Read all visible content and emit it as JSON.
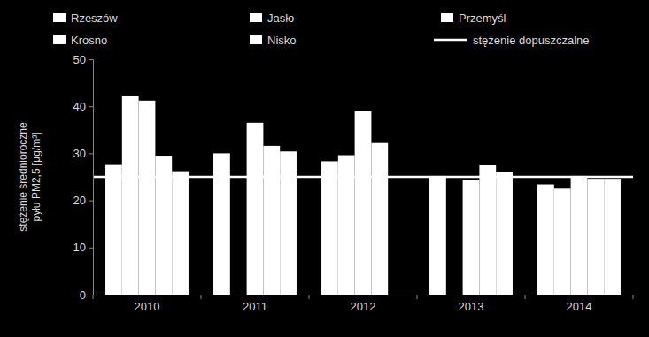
{
  "chart_data": {
    "type": "bar",
    "categories": [
      "2010",
      "2011",
      "2012",
      "2013",
      "2014"
    ],
    "series": [
      {
        "name": "Rzeszów",
        "color": "#ffffff",
        "values": [
          27.7,
          30.0,
          28.3,
          25.2,
          23.4
        ]
      },
      {
        "name": "Jasło",
        "color": "#ffffff",
        "values": [
          42.3,
          null,
          29.6,
          null,
          22.5
        ]
      },
      {
        "name": "Przemyśl",
        "color": "#ffffff",
        "values": [
          41.2,
          36.5,
          39.0,
          24.4,
          25.2
        ]
      },
      {
        "name": "Krosno",
        "color": "#ffffff",
        "values": [
          29.5,
          31.6,
          32.2,
          27.5,
          24.6
        ]
      },
      {
        "name": "Nisko",
        "color": "#ffffff",
        "values": [
          26.2,
          30.4,
          null,
          26.0,
          24.6
        ]
      }
    ],
    "reference_line": {
      "name": "stężenie dopuszczalne",
      "value": 25,
      "color": "#ffffff"
    },
    "ylabel": [
      "stężenie średnioroczne",
      "pyłu PM2,5 [µg/m³]"
    ],
    "ylim": [
      0,
      50
    ],
    "yticks": [
      0,
      10,
      20,
      30,
      40,
      50
    ],
    "grid": false,
    "legend": "top"
  }
}
